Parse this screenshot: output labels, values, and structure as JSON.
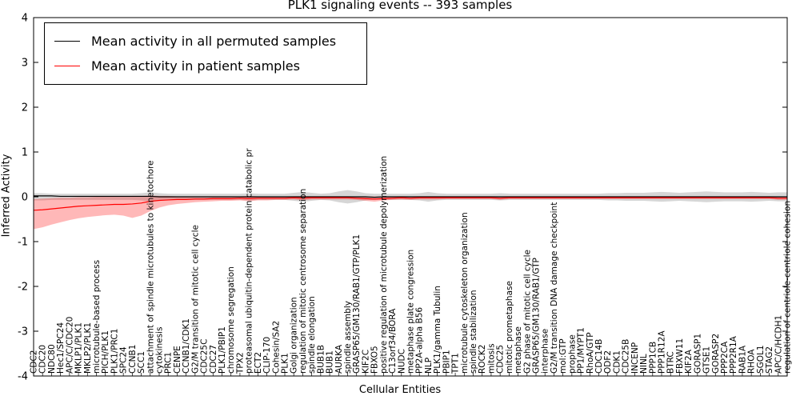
{
  "chart_data": {
    "type": "line",
    "title": "PLK1 signaling events -- 393 samples",
    "xlabel": "Cellular Entities",
    "ylabel": "Inferred Activity",
    "ylim": [
      -4,
      4
    ],
    "yticks": [
      -4,
      -3,
      -2,
      -1,
      0,
      1,
      2,
      3,
      4
    ],
    "grid": false,
    "legend_position": "upper-left",
    "legend": [
      {
        "label": "Mean activity in all permuted samples",
        "color": "#000000"
      },
      {
        "label": "Mean activity in patient samples",
        "color": "#ff0000"
      }
    ],
    "categories": [
      "CDC2",
      "CDC20",
      "NDC80",
      "Hec1/SPC24",
      "APC/C/CDC20",
      "MKLP1/PLK1",
      "MKLP2/PLK1",
      "microtubule-based process",
      "PICH/PLK1",
      "PLK1/PRC1",
      "SPC24",
      "CCNB1",
      "SCC1",
      "attachment of spindle microtubules to kinetochore",
      "cytokinesis",
      "PRC1",
      "CENPE",
      "CCNB1/CDK1",
      "G2/M transition of mitotic cell cycle",
      "CDC25C",
      "CDC27",
      "PLK1/PBIP1",
      "chromosome segregation",
      "TPX2",
      "proteasomal ubiquitin-dependent protein catabolic pr",
      "ECT2",
      "CLIP-170",
      "Cohesin/SA2",
      "PLK1",
      "Golgi organization",
      "regulation of mitotic centrosome separation",
      "spindle elongation",
      "BUB1B",
      "BUB1",
      "AURKA",
      "spindle assembly",
      "GRASP65/GM130/RAB1/GTP/PLK1",
      "KIF2C",
      "FBXO5",
      "positive regulation of microtubule depolymerization",
      "C13orf34/BORA",
      "NUDC",
      "metaphase plate congression",
      "PP2A-alpha B56",
      "NLP",
      "PLK1/gamma Tubulin",
      "PBIP1",
      "TPT1",
      "microtubule cytoskeleton organization",
      "spindle stabilization",
      "ROCK2",
      "mitosis",
      "CDC25",
      "mitotic prometaphase",
      "metaphase",
      "G2 phase of mitotic cell cycle",
      "GRASP65/GM130/RAB1/GTP",
      "interphase",
      "G2/M transition DNA damage checkpoint",
      "mol:GTP",
      "prophase",
      "PP1/MYPT1",
      "RhoA/GTP",
      "CDC14B",
      "ODF2",
      "CDK1",
      "CDC25B",
      "INCENP",
      "NINL",
      "PPP1CB",
      "PPP1R12A",
      "BTRC",
      "FBXW11",
      "KIF2A",
      "GORASP1",
      "GTSE1",
      "GORASP2",
      "PPP2CA",
      "PPP2R1A",
      "RAB1A",
      "RHOA",
      "SGOL1",
      "STAG2",
      "APC/C/HCDH1",
      "regulation of centriole-centriole cohesion"
    ],
    "series": [
      {
        "name": "Mean activity in all permuted samples",
        "color": "#000000",
        "values": [
          0.02,
          0.02,
          0.02,
          0.01,
          0.01,
          0.01,
          0.01,
          0.01,
          0.01,
          0.01,
          0.01,
          0.01,
          0.01,
          0.01,
          0.0,
          0.0,
          0.0,
          0.0,
          0.0,
          0.0,
          0.0,
          0.0,
          0.0,
          0.0,
          0.0,
          0.0,
          0.0,
          0.0,
          0.0,
          0.0,
          0.0,
          0.0,
          0.0,
          0.0,
          0.0,
          0.0,
          0.0,
          0.0,
          -0.01,
          0.0,
          0.0,
          0.0,
          0.0,
          0.0,
          0.0,
          0.0,
          0.0,
          0.0,
          0.0,
          0.0,
          0.0,
          0.0,
          0.0,
          0.0,
          0.0,
          0.0,
          0.0,
          0.0,
          0.0,
          0.0,
          0.0,
          0.0,
          0.0,
          0.0,
          0.0,
          0.0,
          0.0,
          0.0,
          0.0,
          0.0,
          0.0,
          0.0,
          0.0,
          0.0,
          0.0,
          0.0,
          0.0,
          0.0,
          0.0,
          0.0,
          0.0,
          0.0,
          0.0,
          0.0,
          0.0
        ]
      },
      {
        "name": "Mean activity in patient samples",
        "color": "#ff0000",
        "values": [
          -0.3,
          -0.29,
          -0.27,
          -0.25,
          -0.23,
          -0.21,
          -0.2,
          -0.19,
          -0.18,
          -0.17,
          -0.17,
          -0.16,
          -0.14,
          -0.1,
          -0.08,
          -0.07,
          -0.06,
          -0.06,
          -0.05,
          -0.05,
          -0.04,
          -0.04,
          -0.04,
          -0.03,
          -0.04,
          -0.03,
          -0.03,
          -0.03,
          -0.03,
          -0.02,
          -0.03,
          -0.02,
          -0.02,
          -0.02,
          -0.02,
          -0.02,
          -0.03,
          -0.04,
          -0.05,
          -0.04,
          -0.03,
          -0.02,
          -0.03,
          -0.02,
          -0.02,
          -0.02,
          -0.02,
          -0.02,
          -0.02,
          -0.02,
          -0.02,
          -0.02,
          -0.03,
          -0.02,
          -0.02,
          -0.02,
          -0.02,
          -0.02,
          -0.02,
          -0.02,
          -0.02,
          -0.02,
          -0.02,
          -0.02,
          -0.02,
          -0.02,
          -0.02,
          -0.02,
          -0.02,
          -0.02,
          -0.02,
          -0.02,
          -0.02,
          -0.02,
          -0.02,
          -0.02,
          -0.02,
          -0.02,
          -0.02,
          -0.02,
          -0.02,
          -0.02,
          -0.02,
          -0.03,
          -0.03
        ]
      }
    ],
    "bands": [
      {
        "name": "permuted-confidence-band",
        "color": "#000000",
        "opacity": 0.16,
        "upper": [
          0.08,
          0.08,
          0.07,
          0.07,
          0.07,
          0.07,
          0.07,
          0.07,
          0.07,
          0.07,
          0.07,
          0.07,
          0.08,
          0.1,
          0.08,
          0.07,
          0.07,
          0.07,
          0.07,
          0.07,
          0.07,
          0.07,
          0.07,
          0.07,
          0.08,
          0.07,
          0.07,
          0.07,
          0.07,
          0.09,
          0.11,
          0.09,
          0.07,
          0.08,
          0.12,
          0.15,
          0.12,
          0.08,
          0.07,
          0.07,
          0.07,
          0.07,
          0.07,
          0.08,
          0.11,
          0.08,
          0.07,
          0.07,
          0.07,
          0.07,
          0.07,
          0.07,
          0.08,
          0.07,
          0.07,
          0.07,
          0.07,
          0.07,
          0.07,
          0.07,
          0.07,
          0.07,
          0.07,
          0.07,
          0.08,
          0.08,
          0.09,
          0.09,
          0.09,
          0.1,
          0.11,
          0.1,
          0.09,
          0.1,
          0.11,
          0.12,
          0.11,
          0.1,
          0.1,
          0.1,
          0.11,
          0.1,
          0.09,
          0.1,
          0.1
        ],
        "lower": [
          -0.08,
          -0.08,
          -0.07,
          -0.07,
          -0.07,
          -0.07,
          -0.07,
          -0.07,
          -0.07,
          -0.07,
          -0.07,
          -0.07,
          -0.08,
          -0.1,
          -0.08,
          -0.07,
          -0.07,
          -0.07,
          -0.07,
          -0.07,
          -0.07,
          -0.07,
          -0.07,
          -0.07,
          -0.08,
          -0.07,
          -0.07,
          -0.07,
          -0.07,
          -0.09,
          -0.11,
          -0.09,
          -0.07,
          -0.08,
          -0.12,
          -0.15,
          -0.12,
          -0.08,
          -0.07,
          -0.07,
          -0.07,
          -0.07,
          -0.07,
          -0.08,
          -0.11,
          -0.08,
          -0.07,
          -0.07,
          -0.07,
          -0.07,
          -0.07,
          -0.07,
          -0.08,
          -0.07,
          -0.07,
          -0.07,
          -0.07,
          -0.07,
          -0.07,
          -0.07,
          -0.07,
          -0.07,
          -0.07,
          -0.07,
          -0.08,
          -0.08,
          -0.09,
          -0.09,
          -0.09,
          -0.1,
          -0.11,
          -0.1,
          -0.09,
          -0.1,
          -0.11,
          -0.12,
          -0.11,
          -0.1,
          -0.1,
          -0.1,
          -0.11,
          -0.1,
          -0.09,
          -0.1,
          -0.1
        ]
      },
      {
        "name": "patient-confidence-band",
        "color": "#ff0000",
        "opacity": 0.28,
        "upper": [
          -0.05,
          -0.04,
          -0.03,
          -0.02,
          -0.02,
          -0.01,
          -0.01,
          0.0,
          0.0,
          0.01,
          0.01,
          0.02,
          0.02,
          0.03,
          0.02,
          0.02,
          0.01,
          0.01,
          0.01,
          0.01,
          0.01,
          0.0,
          0.01,
          0.01,
          0.02,
          0.01,
          0.01,
          0.01,
          0.01,
          0.01,
          0.02,
          0.01,
          0.01,
          0.01,
          0.01,
          0.01,
          0.01,
          0.01,
          0.01,
          0.01,
          0.01,
          0.01,
          0.01,
          0.01,
          0.01,
          0.01,
          0.01,
          0.01,
          0.01,
          0.01,
          0.01,
          0.01,
          0.01,
          0.01,
          0.01,
          0.01,
          0.01,
          0.01,
          0.01,
          0.01,
          0.01,
          0.01,
          0.01,
          0.01,
          0.01,
          0.01,
          0.01,
          0.01,
          0.01,
          0.01,
          0.01,
          0.01,
          0.01,
          0.01,
          0.01,
          0.01,
          0.01,
          0.01,
          0.01,
          0.01,
          0.01,
          0.01,
          0.01,
          0.0,
          0.0
        ],
        "lower": [
          -0.72,
          -0.68,
          -0.62,
          -0.57,
          -0.52,
          -0.48,
          -0.45,
          -0.43,
          -0.41,
          -0.4,
          -0.42,
          -0.47,
          -0.42,
          -0.32,
          -0.24,
          -0.19,
          -0.16,
          -0.14,
          -0.12,
          -0.11,
          -0.1,
          -0.09,
          -0.09,
          -0.08,
          -0.1,
          -0.08,
          -0.08,
          -0.07,
          -0.07,
          -0.06,
          -0.08,
          -0.06,
          -0.06,
          -0.06,
          -0.06,
          -0.06,
          -0.07,
          -0.09,
          -0.11,
          -0.08,
          -0.07,
          -0.06,
          -0.07,
          -0.06,
          -0.06,
          -0.06,
          -0.05,
          -0.05,
          -0.05,
          -0.05,
          -0.05,
          -0.05,
          -0.07,
          -0.05,
          -0.05,
          -0.05,
          -0.05,
          -0.05,
          -0.05,
          -0.05,
          -0.05,
          -0.05,
          -0.05,
          -0.05,
          -0.05,
          -0.05,
          -0.05,
          -0.05,
          -0.05,
          -0.05,
          -0.05,
          -0.05,
          -0.05,
          -0.05,
          -0.05,
          -0.05,
          -0.05,
          -0.05,
          -0.05,
          -0.05,
          -0.05,
          -0.05,
          -0.05,
          -0.07,
          -0.07
        ]
      }
    ]
  }
}
